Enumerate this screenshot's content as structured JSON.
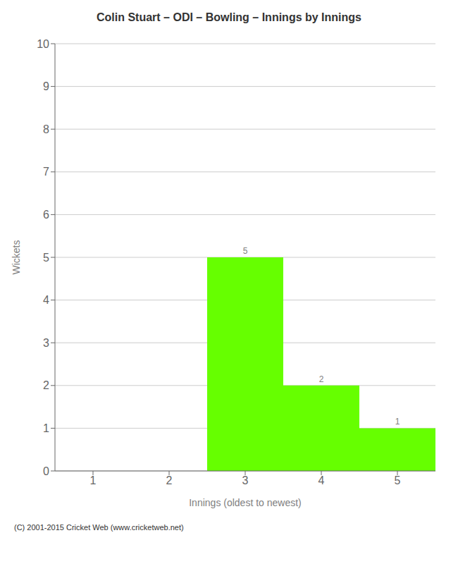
{
  "chart_data": {
    "type": "bar",
    "title": "Colin Stuart – ODI – Bowling – Innings by Innings",
    "xlabel": "Innings (oldest to newest)",
    "ylabel": "Wickets",
    "categories": [
      1,
      2,
      3,
      4,
      5
    ],
    "values": [
      0,
      0,
      5,
      2,
      1
    ],
    "color": "#66ff00",
    "ylim": [
      0,
      10
    ],
    "yticks": [
      0,
      1,
      2,
      3,
      4,
      5,
      6,
      7,
      8,
      9,
      10
    ],
    "grid": true,
    "data_labels": true,
    "footer": "(C) 2001-2015 Cricket Web (www.cricketweb.net)"
  }
}
